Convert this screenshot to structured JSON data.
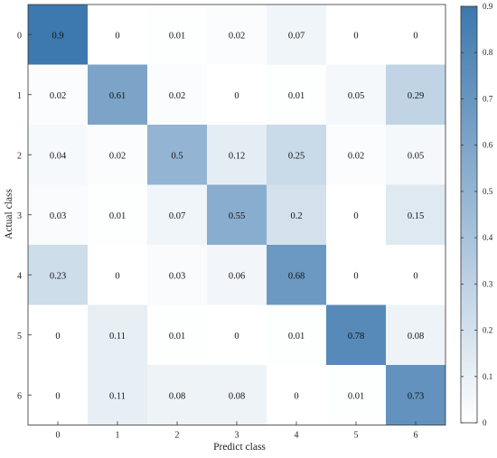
{
  "chart_data": {
    "type": "heatmap",
    "xlabel": "Predict class",
    "ylabel": "Actual class",
    "x_categories": [
      "0",
      "1",
      "2",
      "3",
      "4",
      "5",
      "6"
    ],
    "y_categories": [
      "0",
      "1",
      "2",
      "3",
      "4",
      "5",
      "6"
    ],
    "values": [
      [
        0.9,
        0,
        0.01,
        0.02,
        0.07,
        0,
        0
      ],
      [
        0.02,
        0.61,
        0.02,
        0,
        0.01,
        0.05,
        0.29
      ],
      [
        0.04,
        0.02,
        0.5,
        0.12,
        0.25,
        0.02,
        0.05
      ],
      [
        0.03,
        0.01,
        0.07,
        0.55,
        0.2,
        0,
        0.15
      ],
      [
        0.23,
        0,
        0.03,
        0.06,
        0.68,
        0,
        0
      ],
      [
        0,
        0.11,
        0.01,
        0,
        0.01,
        0.78,
        0.08
      ],
      [
        0,
        0.11,
        0.08,
        0.08,
        0,
        0.01,
        0.73
      ]
    ],
    "colorbar": {
      "range": [
        0,
        0.9
      ],
      "ticks": [
        "0",
        "0.1",
        "0.2",
        "0.3",
        "0.4",
        "0.5",
        "0.6",
        "0.7",
        "0.8",
        "0.9"
      ],
      "colors": {
        "low": "#ffffff",
        "high": "#3d78ae"
      }
    },
    "grid": false
  }
}
